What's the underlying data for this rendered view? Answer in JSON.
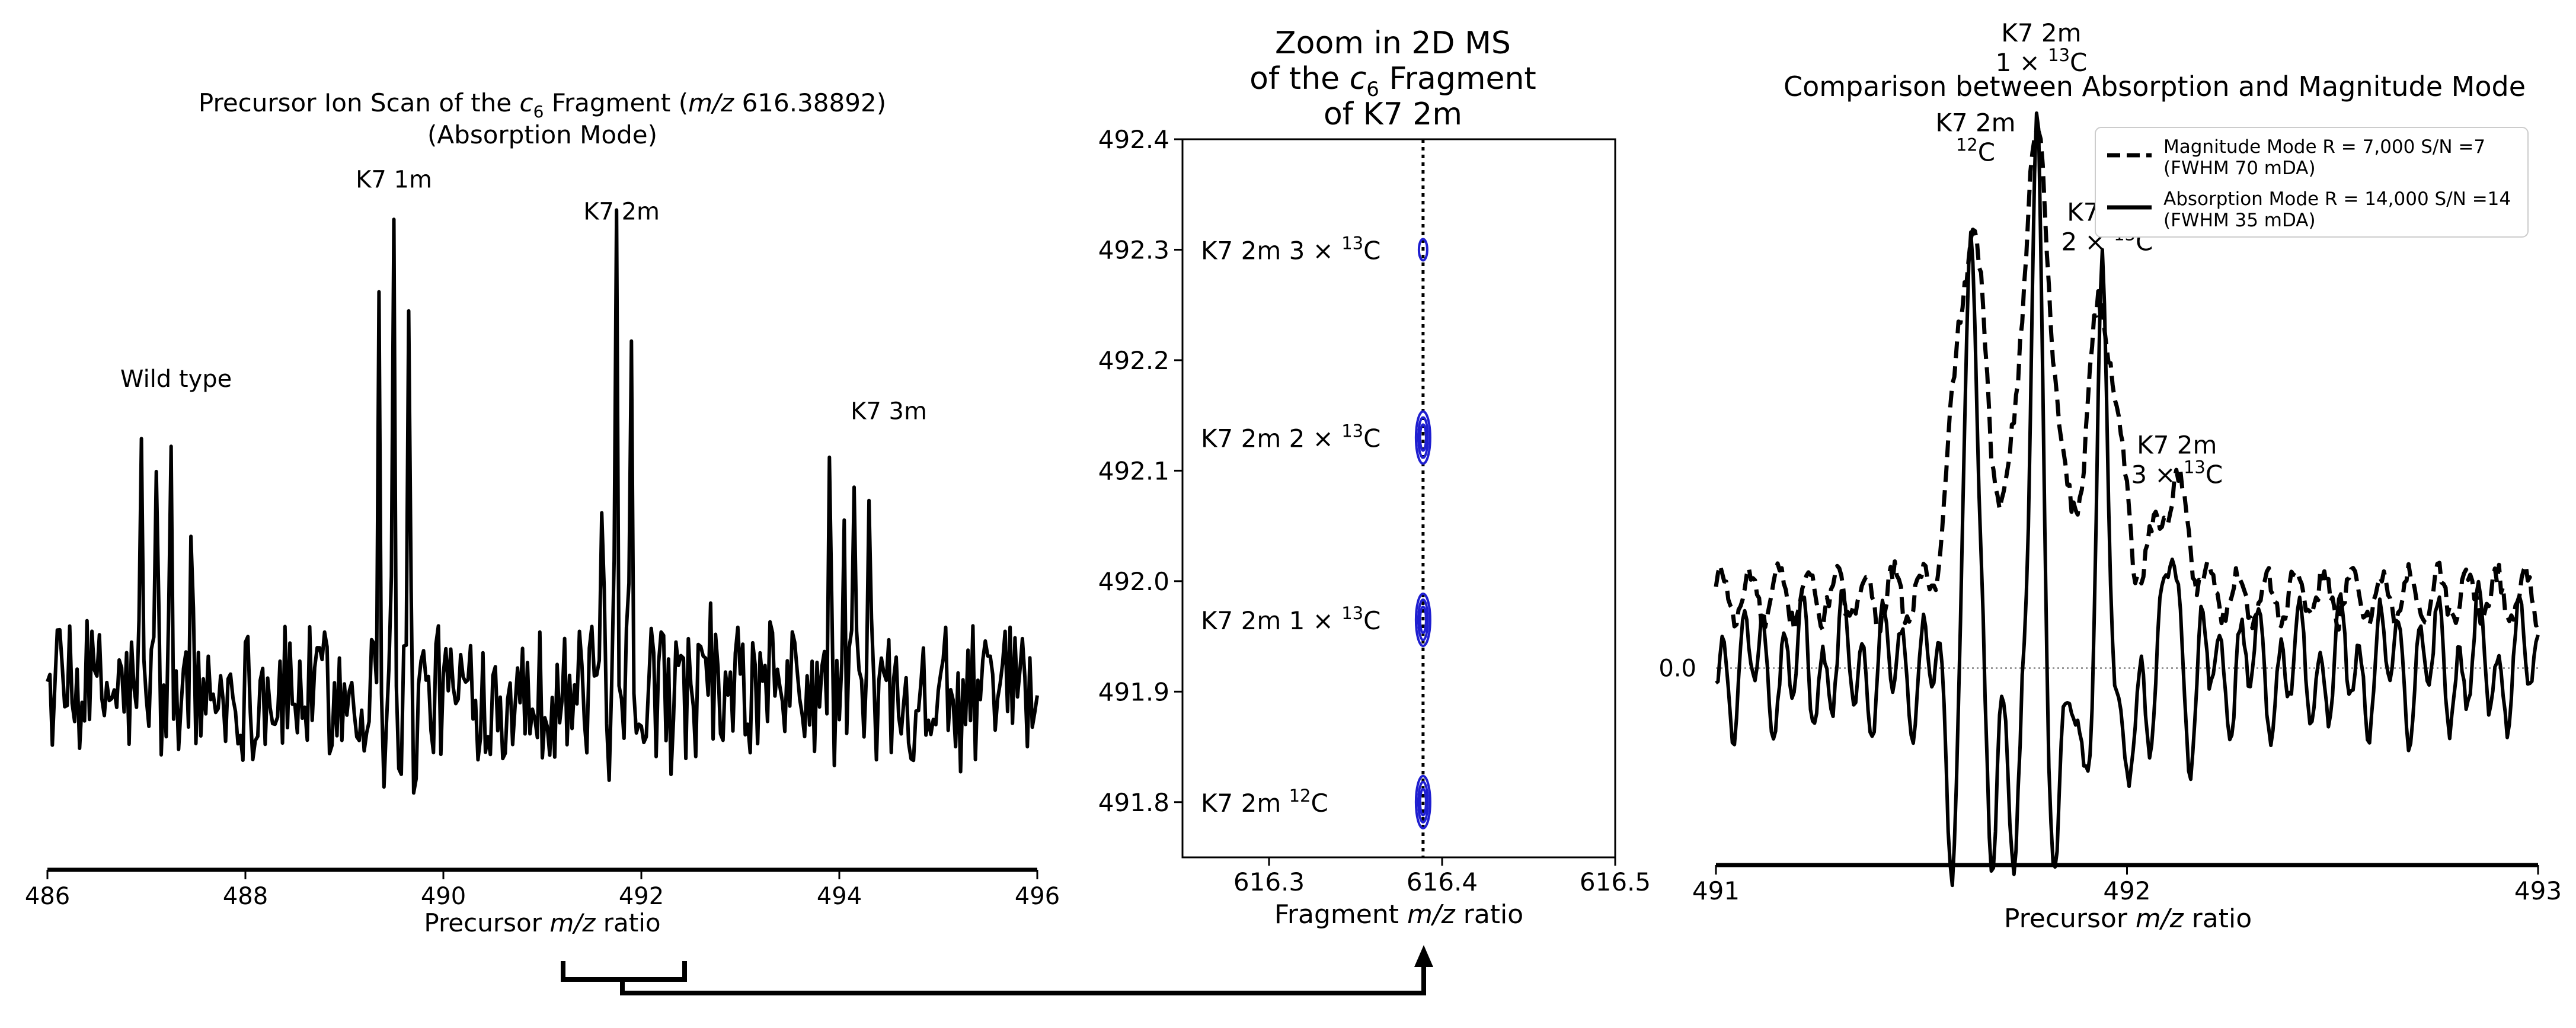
{
  "chart_data": [
    {
      "type": "line",
      "title": "Precursor Ion Scan of the c6 Fragment (m/z 616.38892)",
      "title_parts": {
        "before": "Precursor Ion Scan of the ",
        "symbol": "c",
        "subscript": "6",
        "middle": " Fragment (",
        "italic": "m/z",
        "after": " 616.38892)"
      },
      "subtitle": "(Absorption Mode)",
      "xlabel": "Precursor m/z ratio",
      "xlabel_parts": {
        "before": "Precursor ",
        "italic": "m/z",
        "after": " ratio"
      },
      "ylabel": "",
      "xlim": [
        486,
        496
      ],
      "ylim": [
        -0.55,
        1.6
      ],
      "xticks": [
        "486",
        "488",
        "490",
        "492",
        "494",
        "496"
      ],
      "peaks": [
        {
          "x": 486.95,
          "y": 0.65
        },
        {
          "x": 487.1,
          "y": 0.85
        },
        {
          "x": 487.25,
          "y": 0.65
        },
        {
          "x": 487.45,
          "y": 0.65
        },
        {
          "x": 489.35,
          "y": 1.2
        },
        {
          "x": 489.5,
          "y": 1.5
        },
        {
          "x": 489.65,
          "y": 1.1
        },
        {
          "x": 491.6,
          "y": 0.9
        },
        {
          "x": 491.75,
          "y": 1.4
        },
        {
          "x": 491.9,
          "y": 0.95
        },
        {
          "x": 493.9,
          "y": 0.6
        },
        {
          "x": 494.05,
          "y": 0.55
        },
        {
          "x": 494.15,
          "y": 0.75
        },
        {
          "x": 494.3,
          "y": 0.6
        }
      ],
      "series": [
        {
          "name": "Absorption Mode precursor scan",
          "color": "#000000"
        }
      ],
      "annotations": [
        {
          "text": "Wild type",
          "x": 487.3,
          "y": 0.95
        },
        {
          "text": "K7 1m",
          "x": 489.5,
          "y": 1.57
        },
        {
          "text": "K7 2m",
          "x": 491.8,
          "y": 1.47
        },
        {
          "text": "K7 3m",
          "x": 494.5,
          "y": 0.85
        }
      ]
    },
    {
      "type": "scatter",
      "title_lines": [
        "Zoom in 2D MS",
        "of the c6 Fragment",
        "of K7 2m"
      ],
      "title_line2_parts": {
        "before": "of the ",
        "symbol": "c",
        "subscript": "6",
        "after": " Fragment"
      },
      "xlabel": "Fragment m/z ratio",
      "xlabel_parts": {
        "before": "Fragment ",
        "italic": "m/z",
        "after": " ratio"
      },
      "xlim": [
        616.25,
        616.5
      ],
      "ylim": [
        491.75,
        492.4
      ],
      "xticks": [
        "616.3",
        "616.4",
        "616.5"
      ],
      "yticks": [
        "491.8",
        "491.9",
        "492.0",
        "492.1",
        "492.2",
        "492.3",
        "492.4"
      ],
      "reference_line_x": 616.389,
      "contour_color": "#1f1fd0",
      "contours": [
        {
          "x": 616.389,
          "y": 492.3,
          "label": "K7 2m 3 × 13C",
          "label_prefix": "K7 2m 3 × ",
          "label_sup": "13",
          "label_suffix": "C",
          "levels": 1
        },
        {
          "x": 616.389,
          "y": 492.13,
          "label": "K7 2m 2 × 13C",
          "label_prefix": "K7 2m 2 × ",
          "label_sup": "13",
          "label_suffix": "C",
          "levels": 3
        },
        {
          "x": 616.389,
          "y": 491.965,
          "label": "K7 2m 1 × 13C",
          "label_prefix": "K7 2m 1 × ",
          "label_sup": "13",
          "label_suffix": "C",
          "levels": 3
        },
        {
          "x": 616.389,
          "y": 491.8,
          "label": "K7 2m 12C",
          "label_prefix": "K7 2m ",
          "label_sup": "12",
          "label_suffix": "C",
          "levels": 3
        }
      ]
    },
    {
      "type": "line",
      "title": "Comparison between Absorption and Magnitude Mode",
      "xlabel": "Precursor m/z ratio",
      "xlabel_parts": {
        "before": "Precursor ",
        "italic": "m/z",
        "after": " ratio"
      },
      "xlim": [
        491,
        493
      ],
      "ylim": [
        -0.55,
        1.6
      ],
      "xticks": [
        "491",
        "492",
        "493"
      ],
      "ytick_label": "0.0",
      "ytick_value": 0.0,
      "series": [
        {
          "name": "Magnitude Mode R = 7,000 S/N =7 (FWHM 70 mDA)",
          "legend_line1": "Magnitude Mode R = 7,000 S/N =7",
          "legend_line2": "(FWHM 70 mDA)",
          "style": "dashed",
          "color": "#000000",
          "baseline": 0.2,
          "peaks": [
            {
              "x": 491.62,
              "y": 1.2
            },
            {
              "x": 491.78,
              "y": 1.45
            },
            {
              "x": 491.94,
              "y": 1.0
            },
            {
              "x": 492.11,
              "y": 0.5
            }
          ]
        },
        {
          "name": "Absorption Mode R = 14,000 S/N =14 (FWHM 35 mDA)",
          "legend_line1": "Absorption Mode R = 14,000 S/N =14",
          "legend_line2": "(FWHM 35 mDA)",
          "style": "solid",
          "color": "#000000",
          "baseline": 0.0,
          "peaks": [
            {
              "x": 491.62,
              "y": 1.3
            },
            {
              "x": 491.78,
              "y": 1.55
            },
            {
              "x": 491.94,
              "y": 1.05
            },
            {
              "x": 492.11,
              "y": 0.4
            }
          ]
        }
      ],
      "annotations": [
        {
          "line1": "K7 2m",
          "line2_prefix": "",
          "line2_sup": "12",
          "line2_suffix": "C",
          "text": "K7 2m 12C",
          "x": 491.62
        },
        {
          "line1": "K7 2m",
          "line2_prefix": "1 × ",
          "line2_sup": "13",
          "line2_suffix": "C",
          "text": "K7 2m 1 × 13C",
          "x": 491.78
        },
        {
          "line1": "K7 2m",
          "line2_prefix": "2 × ",
          "line2_sup": "13",
          "line2_suffix": "C",
          "text": "K7 2m 2 × 13C",
          "x": 491.94
        },
        {
          "line1": "K7 2m",
          "line2_prefix": "3 × ",
          "line2_sup": "13",
          "line2_suffix": "C",
          "text": "K7 2m 3 × 13C",
          "x": 492.11
        }
      ]
    }
  ]
}
